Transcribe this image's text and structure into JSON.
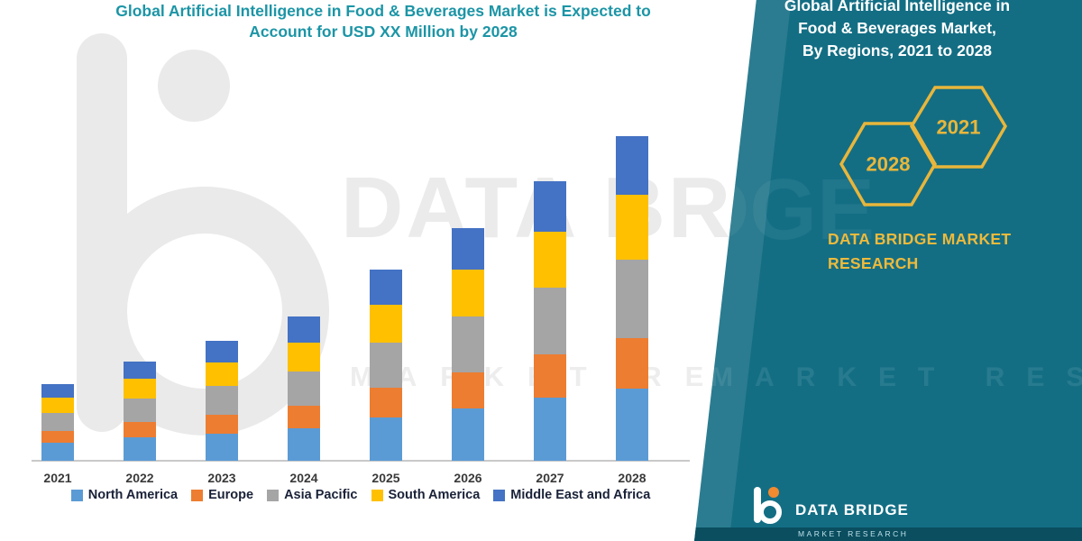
{
  "header": {
    "line1": "Global Artificial Intelligence in Food & Beverages Market is Expected to",
    "line2": "Account for USD XX Million by 2028"
  },
  "watermark": {
    "big_text": "DATA BRIDGE",
    "spaced_text": "MARKET RESEARCH"
  },
  "panel": {
    "title_lines": [
      "Global Artificial Intelligence in",
      "Food & Beverages Market,",
      "By Regions, 2021 to 2028"
    ],
    "hex_years": [
      "2028",
      "2021"
    ],
    "brand_line1": "DATA BRIDGE MARKET",
    "brand_line2": "RESEARCH",
    "footer_name": "DATA BRIDGE",
    "footer_sub": "MARKET RESEARCH",
    "panel_color": "#136E84",
    "accent_gold": "#E8B63B"
  },
  "colors": {
    "title_teal": "#1C95A6",
    "north_america": "#5B9BD5",
    "europe": "#ED7D31",
    "asia_pacific": "#A5A5A5",
    "south_america": "#FFC000",
    "middle_east_africa": "#4472C4"
  },
  "chart_data": {
    "type": "bar",
    "stacked": true,
    "title": "Global Artificial Intelligence in Food & Beverages Market is Expected to Account for USD XX Million by 2028",
    "xlabel": "",
    "ylabel": "",
    "y_axis_visible": false,
    "grid": false,
    "legend_position": "bottom",
    "ylim": [
      0,
      110
    ],
    "categories": [
      "2021",
      "2022",
      "2023",
      "2024",
      "2025",
      "2026",
      "2027",
      "2028"
    ],
    "series": [
      {
        "name": "North America",
        "color": "#5B9BD5",
        "values": [
          5.6,
          7.2,
          8.3,
          10.0,
          13.3,
          16.1,
          19.4,
          22.2
        ]
      },
      {
        "name": "Europe",
        "color": "#ED7D31",
        "values": [
          3.6,
          4.7,
          5.8,
          6.9,
          9.2,
          11.1,
          13.3,
          15.6
        ]
      },
      {
        "name": "Asia Pacific",
        "color": "#A5A5A5",
        "values": [
          5.6,
          7.2,
          8.9,
          10.6,
          13.9,
          17.2,
          20.6,
          24.2
        ]
      },
      {
        "name": "South America",
        "color": "#FFC000",
        "values": [
          4.7,
          6.1,
          7.2,
          8.9,
          11.7,
          14.4,
          17.2,
          20.0
        ]
      },
      {
        "name": "Middle East and Africa",
        "color": "#4472C4",
        "values": [
          4.2,
          5.3,
          6.7,
          8.1,
          10.8,
          12.8,
          15.6,
          18.1
        ]
      }
    ]
  }
}
